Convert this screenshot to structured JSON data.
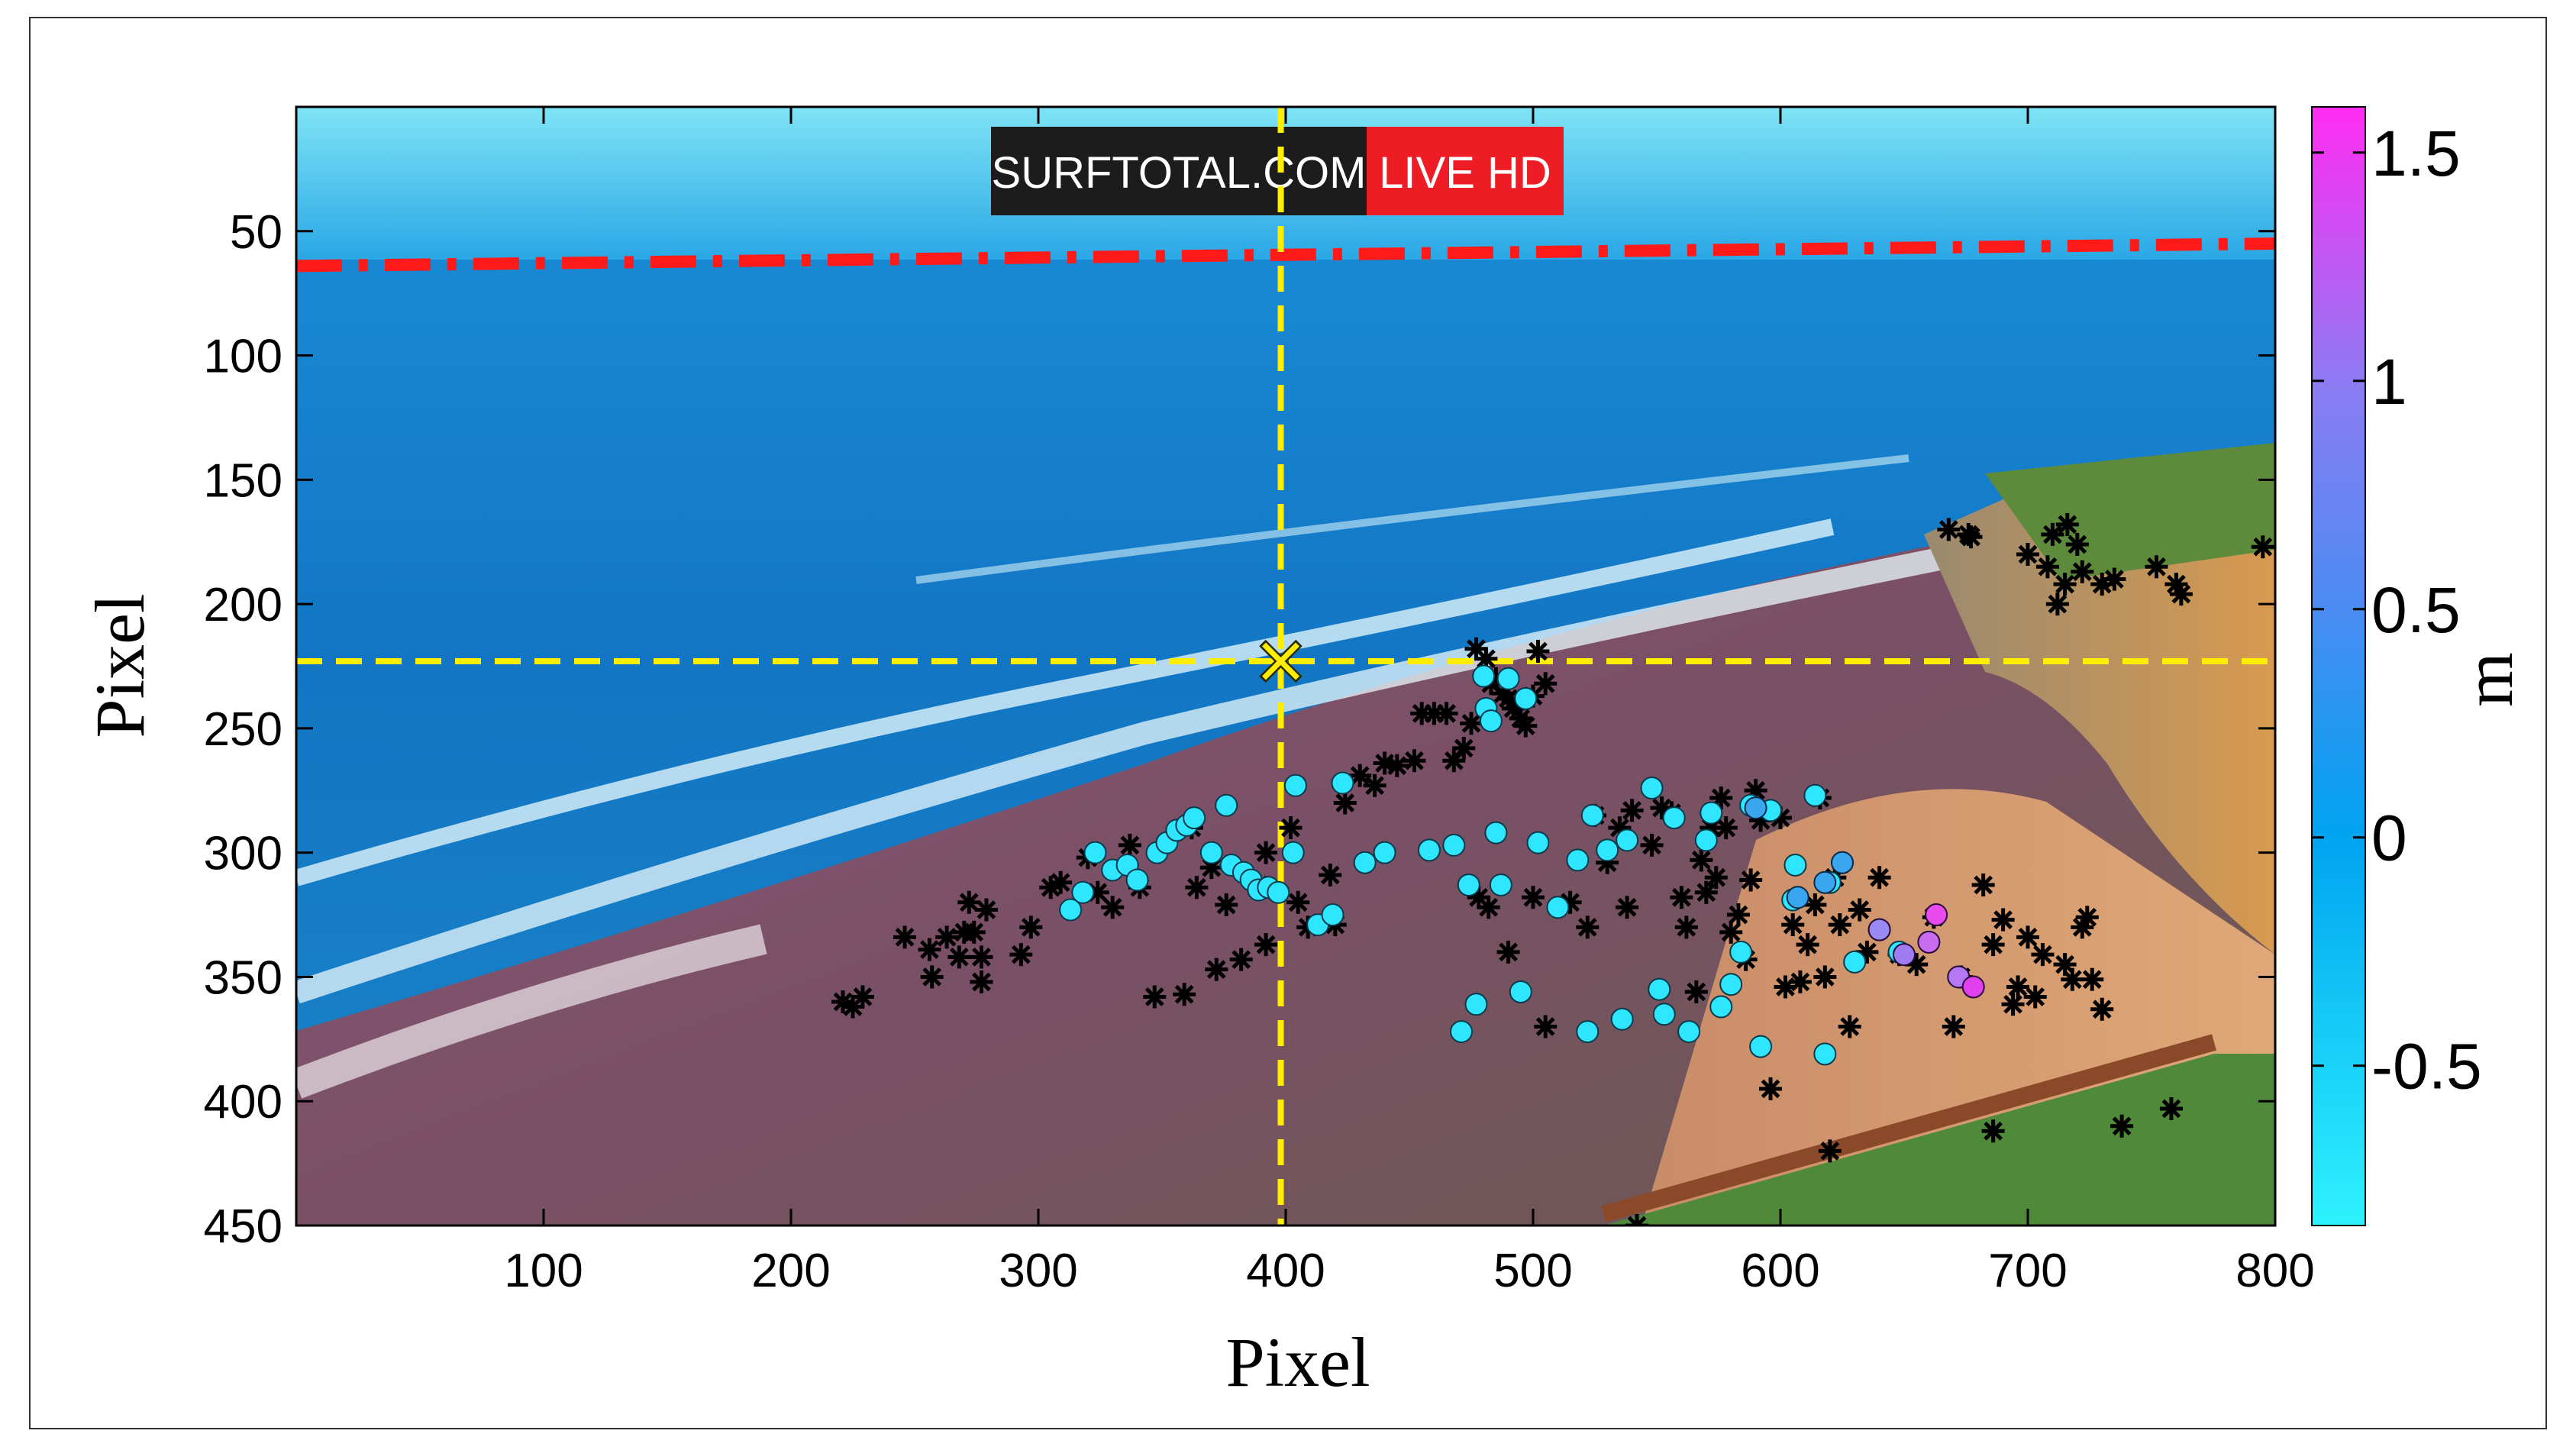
{
  "chart_data": {
    "type": "scatter",
    "title": "",
    "xlabel": "Pixel",
    "ylabel": "Pixel",
    "xlim": [
      0,
      800
    ],
    "ylim": [
      450,
      0
    ],
    "xticks": [
      100,
      200,
      300,
      400,
      500,
      600,
      700,
      800
    ],
    "yticks": [
      50,
      100,
      150,
      200,
      250,
      300,
      350,
      400,
      450
    ],
    "grid": false,
    "background": "coastal webcam photo (beach, sea, cliffs)",
    "watermark": {
      "left": "SURFTOTAL.COM",
      "right": "LIVE HD"
    },
    "colorbar": {
      "label": "m",
      "range": [
        -0.85,
        1.6
      ],
      "ticks": [
        -0.5,
        0,
        0.5,
        1,
        1.5
      ],
      "tick_labels": [
        "-0.5",
        "0",
        "0.5",
        "1",
        "1.5"
      ],
      "colors": [
        "#2ef2ff",
        "#00a3f0",
        "#8c7cf4",
        "#ff2cf2"
      ]
    },
    "horizon_line": {
      "style": "dash-dot",
      "color": "#ff1a1a",
      "points": [
        [
          0,
          64
        ],
        [
          800,
          55
        ]
      ]
    },
    "crosshair": {
      "x": 398,
      "y": 223,
      "color": "#ffee00",
      "marker": "x"
    },
    "ground_points": [
      [
        221,
        360
      ],
      [
        225,
        362
      ],
      [
        229,
        358
      ],
      [
        246,
        334
      ],
      [
        256,
        339
      ],
      [
        257,
        350
      ],
      [
        263,
        334
      ],
      [
        268,
        342
      ],
      [
        270,
        332
      ],
      [
        272,
        320
      ],
      [
        274,
        332
      ],
      [
        277,
        342
      ],
      [
        277,
        352
      ],
      [
        279,
        323
      ],
      [
        293,
        341
      ],
      [
        297,
        330
      ],
      [
        305,
        314
      ],
      [
        309,
        312
      ],
      [
        320,
        302
      ],
      [
        324,
        316
      ],
      [
        330,
        322
      ],
      [
        337,
        297
      ],
      [
        341,
        314
      ],
      [
        347,
        358
      ],
      [
        359,
        357
      ],
      [
        362,
        290
      ],
      [
        364,
        314
      ],
      [
        370,
        306
      ],
      [
        372,
        347
      ],
      [
        376,
        321
      ],
      [
        382,
        343
      ],
      [
        389,
        313
      ],
      [
        392,
        300
      ],
      [
        392,
        337
      ],
      [
        402,
        290
      ],
      [
        405,
        320
      ],
      [
        409,
        330
      ],
      [
        418,
        309
      ],
      [
        420,
        329
      ],
      [
        424,
        280
      ],
      [
        430,
        269
      ],
      [
        436,
        273
      ],
      [
        440,
        264
      ],
      [
        445,
        265
      ],
      [
        452,
        263
      ],
      [
        455,
        244
      ],
      [
        460,
        244
      ],
      [
        465,
        244
      ],
      [
        468,
        263
      ],
      [
        472,
        258
      ],
      [
        475,
        248
      ],
      [
        477,
        218
      ],
      [
        481,
        222
      ],
      [
        483,
        232
      ],
      [
        485,
        230
      ],
      [
        488,
        236
      ],
      [
        490,
        238
      ],
      [
        492,
        242
      ],
      [
        495,
        246
      ],
      [
        497,
        249
      ],
      [
        500,
        237
      ],
      [
        502,
        219
      ],
      [
        505,
        232
      ],
      [
        478,
        318
      ],
      [
        482,
        322
      ],
      [
        490,
        340
      ],
      [
        500,
        318
      ],
      [
        505,
        370
      ],
      [
        515,
        320
      ],
      [
        522,
        330
      ],
      [
        525,
        285
      ],
      [
        530,
        304
      ],
      [
        535,
        290
      ],
      [
        538,
        322
      ],
      [
        540,
        283
      ],
      [
        542,
        450
      ],
      [
        548,
        297
      ],
      [
        552,
        282
      ],
      [
        556,
        284
      ],
      [
        560,
        318
      ],
      [
        562,
        330
      ],
      [
        566,
        356
      ],
      [
        568,
        303
      ],
      [
        570,
        316
      ],
      [
        572,
        290
      ],
      [
        574,
        310
      ],
      [
        576,
        278
      ],
      [
        578,
        290
      ],
      [
        580,
        332
      ],
      [
        583,
        325
      ],
      [
        586,
        343
      ],
      [
        588,
        311
      ],
      [
        590,
        275
      ],
      [
        592,
        287
      ],
      [
        596,
        395
      ],
      [
        600,
        286
      ],
      [
        602,
        354
      ],
      [
        605,
        329
      ],
      [
        608,
        352
      ],
      [
        611,
        337
      ],
      [
        614,
        321
      ],
      [
        616,
        278
      ],
      [
        618,
        350
      ],
      [
        620,
        420
      ],
      [
        622,
        310
      ],
      [
        624,
        329
      ],
      [
        628,
        370
      ],
      [
        632,
        323
      ],
      [
        635,
        340
      ],
      [
        640,
        310
      ],
      [
        648,
        341
      ],
      [
        655,
        345
      ],
      [
        662,
        326
      ],
      [
        668,
        170
      ],
      [
        670,
        370
      ],
      [
        673,
        350
      ],
      [
        677,
        173
      ],
      [
        682,
        313
      ],
      [
        686,
        337
      ],
      [
        690,
        327
      ],
      [
        694,
        361
      ],
      [
        696,
        354
      ],
      [
        700,
        334
      ],
      [
        703,
        358
      ],
      [
        706,
        341
      ],
      [
        710,
        172
      ],
      [
        712,
        200
      ],
      [
        715,
        345
      ],
      [
        718,
        351
      ],
      [
        720,
        176
      ],
      [
        722,
        330
      ],
      [
        724,
        326
      ],
      [
        726,
        351
      ],
      [
        730,
        363
      ],
      [
        735,
        190
      ],
      [
        738,
        410
      ],
      [
        752,
        185
      ],
      [
        758,
        403
      ],
      [
        760,
        192
      ],
      [
        762,
        196
      ],
      [
        795,
        177
      ],
      [
        686,
        412
      ],
      [
        676,
        172
      ],
      [
        700,
        180
      ],
      [
        708,
        185
      ],
      [
        715,
        192
      ],
      [
        722,
        187
      ],
      [
        730,
        192
      ],
      [
        716,
        168
      ]
    ],
    "wave_points": [
      [
        313,
        323
      ],
      [
        318,
        316
      ],
      [
        323,
        300
      ],
      [
        330,
        307
      ],
      [
        336,
        305
      ],
      [
        340,
        311
      ],
      [
        348,
        300
      ],
      [
        352,
        296
      ],
      [
        356,
        291
      ],
      [
        360,
        289
      ],
      [
        363,
        286
      ],
      [
        370,
        300
      ],
      [
        376,
        281
      ],
      [
        378,
        305
      ],
      [
        383,
        308
      ],
      [
        386,
        311
      ],
      [
        389,
        315
      ],
      [
        393,
        314
      ],
      [
        397,
        316
      ],
      [
        403,
        300
      ],
      [
        404,
        273
      ],
      [
        413,
        329
      ],
      [
        419,
        325
      ],
      [
        423,
        272
      ],
      [
        432,
        304
      ],
      [
        440,
        300
      ],
      [
        458,
        299
      ],
      [
        468,
        297
      ],
      [
        471,
        372
      ],
      [
        474,
        313
      ],
      [
        477,
        361
      ],
      [
        480,
        229
      ],
      [
        481,
        242
      ],
      [
        483,
        247
      ],
      [
        485,
        292
      ],
      [
        487,
        313
      ],
      [
        490,
        230
      ],
      [
        495,
        356
      ],
      [
        497,
        238
      ],
      [
        502,
        296
      ],
      [
        510,
        322
      ],
      [
        518,
        303
      ],
      [
        522,
        372
      ],
      [
        524,
        285
      ],
      [
        530,
        299
      ],
      [
        536,
        367
      ],
      [
        538,
        295
      ],
      [
        548,
        274
      ],
      [
        551,
        355
      ],
      [
        553,
        365
      ],
      [
        557,
        286
      ],
      [
        563,
        372
      ],
      [
        570,
        295
      ],
      [
        572,
        284
      ],
      [
        576,
        362
      ],
      [
        580,
        353
      ],
      [
        584,
        340
      ],
      [
        588,
        281
      ],
      [
        592,
        378
      ],
      [
        596,
        283
      ],
      [
        605,
        319
      ],
      [
        606,
        305
      ],
      [
        614,
        277
      ],
      [
        618,
        381
      ],
      [
        620,
        312
      ],
      [
        625,
        304
      ],
      [
        630,
        344
      ],
      [
        640,
        331
      ],
      [
        648,
        340
      ]
    ],
    "mid_points": [
      [
        590,
        282
      ],
      [
        607,
        318
      ],
      [
        618,
        312
      ],
      [
        625,
        304
      ]
    ],
    "high_points": [
      [
        640,
        331
      ],
      [
        650,
        341
      ],
      [
        660,
        336
      ],
      [
        663,
        325
      ],
      [
        672,
        350
      ],
      [
        678,
        354
      ]
    ]
  }
}
